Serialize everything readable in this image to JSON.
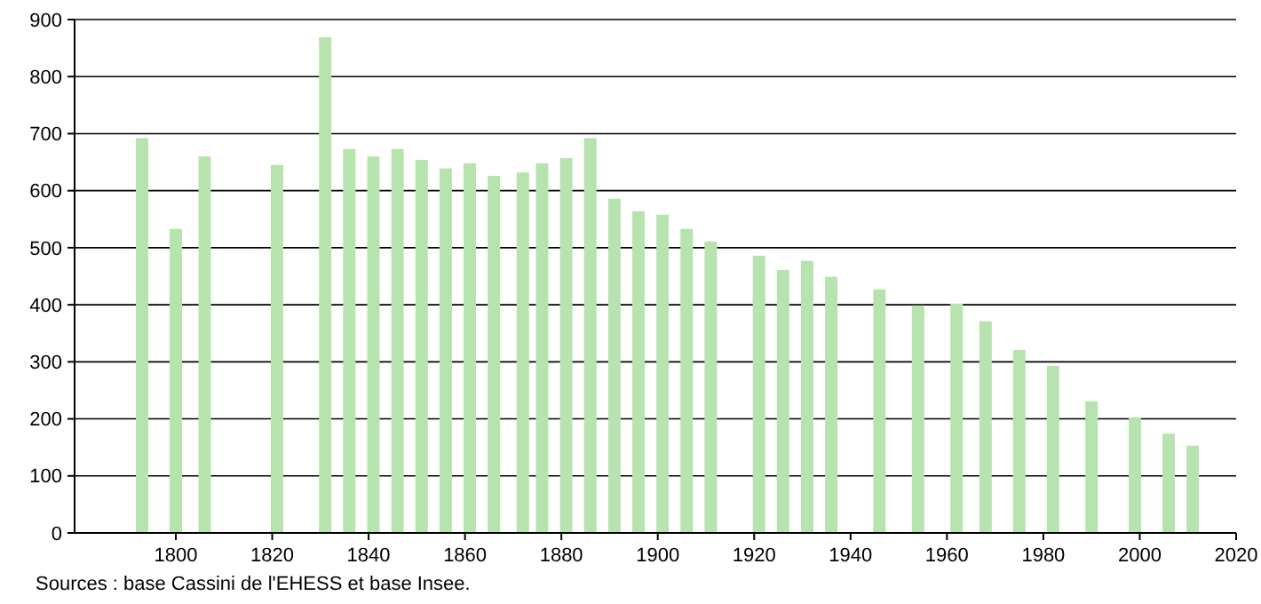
{
  "chart_data": {
    "type": "bar",
    "x": [
      1793,
      1800,
      1806,
      1821,
      1831,
      1836,
      1841,
      1846,
      1851,
      1856,
      1861,
      1866,
      1872,
      1876,
      1881,
      1886,
      1891,
      1896,
      1901,
      1906,
      1911,
      1921,
      1926,
      1931,
      1936,
      1946,
      1954,
      1962,
      1968,
      1975,
      1982,
      1990,
      1999,
      2006,
      2011
    ],
    "values": [
      692,
      533,
      660,
      645,
      869,
      673,
      660,
      673,
      654,
      639,
      648,
      626,
      632,
      648,
      657,
      692,
      586,
      564,
      558,
      533,
      511,
      486,
      461,
      477,
      449,
      427,
      399,
      402,
      371,
      321,
      293,
      231,
      202,
      174,
      153
    ],
    "color": "#b7e3ae",
    "xlim": [
      1779,
      2020
    ],
    "xticks": [
      1800,
      1820,
      1840,
      1860,
      1880,
      1900,
      1920,
      1940,
      1960,
      1980,
      2000,
      2020
    ],
    "ylim": [
      0,
      900
    ],
    "yticks": [
      0,
      100,
      200,
      300,
      400,
      500,
      600,
      700,
      800,
      900
    ],
    "grid": "y",
    "annotations": [
      "Sources : base Cassini de l'EHESS et base Insee."
    ]
  }
}
